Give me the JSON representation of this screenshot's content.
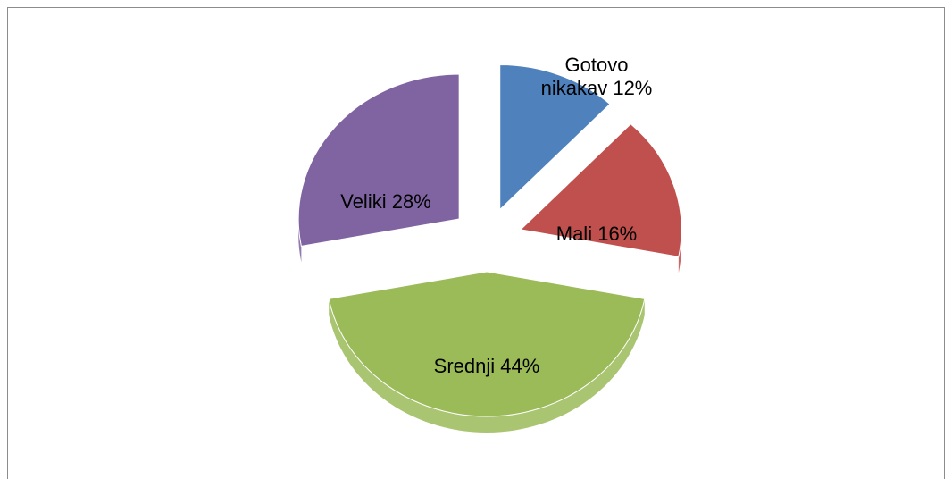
{
  "chart_data": {
    "type": "pie",
    "categories": [
      "Gotovo nikakav",
      "Mali",
      "Srednji",
      "Veliki"
    ],
    "values": [
      12,
      16,
      44,
      28
    ],
    "value_labels": [
      "12%",
      "16%",
      "44%",
      "28%"
    ],
    "colors": [
      "#4f81bd",
      "#c0504d",
      "#9bbb59",
      "#8064a2"
    ],
    "exploded": true
  }
}
